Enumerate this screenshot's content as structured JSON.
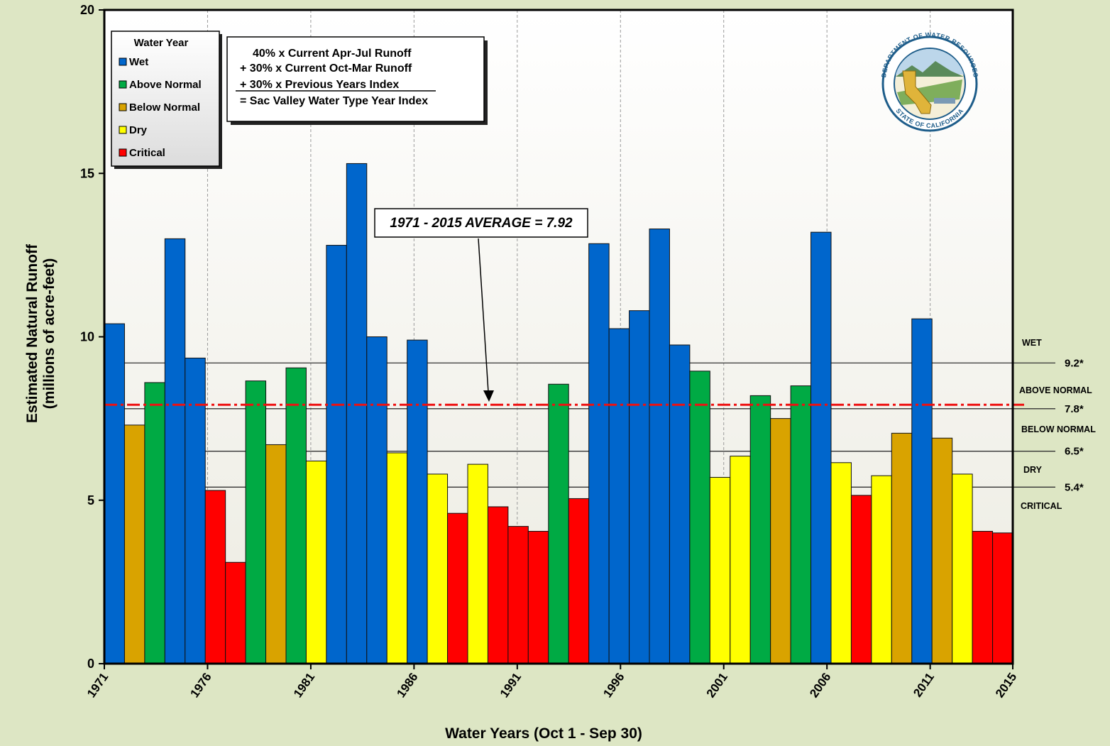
{
  "chart_data": {
    "type": "bar",
    "title": "",
    "xlabel": "Water Years (Oct 1 - Sep 30)",
    "ylabel_lines": [
      "Estimated Natural Runoff",
      "(millions of acre-feet)"
    ],
    "ylim": [
      0,
      20
    ],
    "y_ticks": [
      "0",
      "5",
      "10",
      "15",
      "20"
    ],
    "x_tick_labels": [
      "1971",
      "1976",
      "1981",
      "1986",
      "1991",
      "1996",
      "2001",
      "2006",
      "2011",
      "2015"
    ],
    "grid": "vertical dashed at labeled years",
    "colors": {
      "Wet": "#0066cc",
      "Above Normal": "#00aa44",
      "Below Normal": "#d9a300",
      "Dry": "#ffff00",
      "Critical": "#ff0000"
    },
    "bars": [
      {
        "year": 1971,
        "value": 10.4,
        "type": "Wet"
      },
      {
        "year": 1972,
        "value": 7.3,
        "type": "Below Normal"
      },
      {
        "year": 1973,
        "value": 8.6,
        "type": "Above Normal"
      },
      {
        "year": 1974,
        "value": 13.0,
        "type": "Wet"
      },
      {
        "year": 1975,
        "value": 9.35,
        "type": "Wet"
      },
      {
        "year": 1976,
        "value": 5.3,
        "type": "Critical"
      },
      {
        "year": 1977,
        "value": 3.1,
        "type": "Critical"
      },
      {
        "year": 1978,
        "value": 8.65,
        "type": "Above Normal"
      },
      {
        "year": 1979,
        "value": 6.7,
        "type": "Below Normal"
      },
      {
        "year": 1980,
        "value": 9.05,
        "type": "Above Normal"
      },
      {
        "year": 1981,
        "value": 6.2,
        "type": "Dry"
      },
      {
        "year": 1982,
        "value": 12.8,
        "type": "Wet"
      },
      {
        "year": 1983,
        "value": 15.3,
        "type": "Wet"
      },
      {
        "year": 1984,
        "value": 10.0,
        "type": "Wet"
      },
      {
        "year": 1985,
        "value": 6.45,
        "type": "Dry"
      },
      {
        "year": 1986,
        "value": 9.9,
        "type": "Wet"
      },
      {
        "year": 1987,
        "value": 5.8,
        "type": "Dry"
      },
      {
        "year": 1988,
        "value": 4.6,
        "type": "Critical"
      },
      {
        "year": 1989,
        "value": 6.1,
        "type": "Dry"
      },
      {
        "year": 1990,
        "value": 4.8,
        "type": "Critical"
      },
      {
        "year": 1991,
        "value": 4.2,
        "type": "Critical"
      },
      {
        "year": 1992,
        "value": 4.05,
        "type": "Critical"
      },
      {
        "year": 1993,
        "value": 8.55,
        "type": "Above Normal"
      },
      {
        "year": 1994,
        "value": 5.05,
        "type": "Critical"
      },
      {
        "year": 1995,
        "value": 12.85,
        "type": "Wet"
      },
      {
        "year": 1996,
        "value": 10.25,
        "type": "Wet"
      },
      {
        "year": 1997,
        "value": 10.8,
        "type": "Wet"
      },
      {
        "year": 1998,
        "value": 13.3,
        "type": "Wet"
      },
      {
        "year": 1999,
        "value": 9.75,
        "type": "Wet"
      },
      {
        "year": 2000,
        "value": 8.95,
        "type": "Above Normal"
      },
      {
        "year": 2001,
        "value": 5.7,
        "type": "Dry"
      },
      {
        "year": 2002,
        "value": 6.35,
        "type": "Dry"
      },
      {
        "year": 2003,
        "value": 8.2,
        "type": "Above Normal"
      },
      {
        "year": 2004,
        "value": 7.5,
        "type": "Below Normal"
      },
      {
        "year": 2005,
        "value": 8.5,
        "type": "Above Normal"
      },
      {
        "year": 2006,
        "value": 13.2,
        "type": "Wet"
      },
      {
        "year": 2007,
        "value": 6.15,
        "type": "Dry"
      },
      {
        "year": 2008,
        "value": 5.15,
        "type": "Critical"
      },
      {
        "year": 2009,
        "value": 5.75,
        "type": "Dry"
      },
      {
        "year": 2010,
        "value": 7.05,
        "type": "Below Normal"
      },
      {
        "year": 2011,
        "value": 10.55,
        "type": "Wet"
      },
      {
        "year": 2012,
        "value": 6.9,
        "type": "Below Normal"
      },
      {
        "year": 2013,
        "value": 5.8,
        "type": "Dry"
      },
      {
        "year": 2014,
        "value": 4.05,
        "type": "Critical"
      },
      {
        "year": 2015,
        "value": 4.0,
        "type": "Critical"
      }
    ],
    "legend": {
      "title": "Water Year",
      "placement": "top-left",
      "items": [
        "Wet",
        "Above Normal",
        "Below Normal",
        "Dry",
        "Critical"
      ]
    },
    "formula": {
      "lines": [
        "40% x Current Apr-Jul Runoff",
        "+  30% x Current Oct-Mar Runoff",
        "+  30% x Previous Years Index",
        "= Sac Valley Water Type Year Index"
      ]
    },
    "average": {
      "value": 7.92,
      "label": "1971 - 2015 AVERAGE = 7.92"
    },
    "thresholds": [
      {
        "value": 9.2,
        "label": "9.2*"
      },
      {
        "value": 7.8,
        "label": "7.8*"
      },
      {
        "value": 6.5,
        "label": "6.5*"
      },
      {
        "value": 5.4,
        "label": "5.4*"
      }
    ],
    "zone_labels": [
      "WET",
      "ABOVE  NORMAL",
      "BELOW NORMAL",
      "DRY",
      "CRITICAL"
    ],
    "seal": {
      "top_text": "DEPARTMENT OF WATER RESOURCES",
      "bottom_text": "STATE OF CALIFORNIA"
    }
  }
}
